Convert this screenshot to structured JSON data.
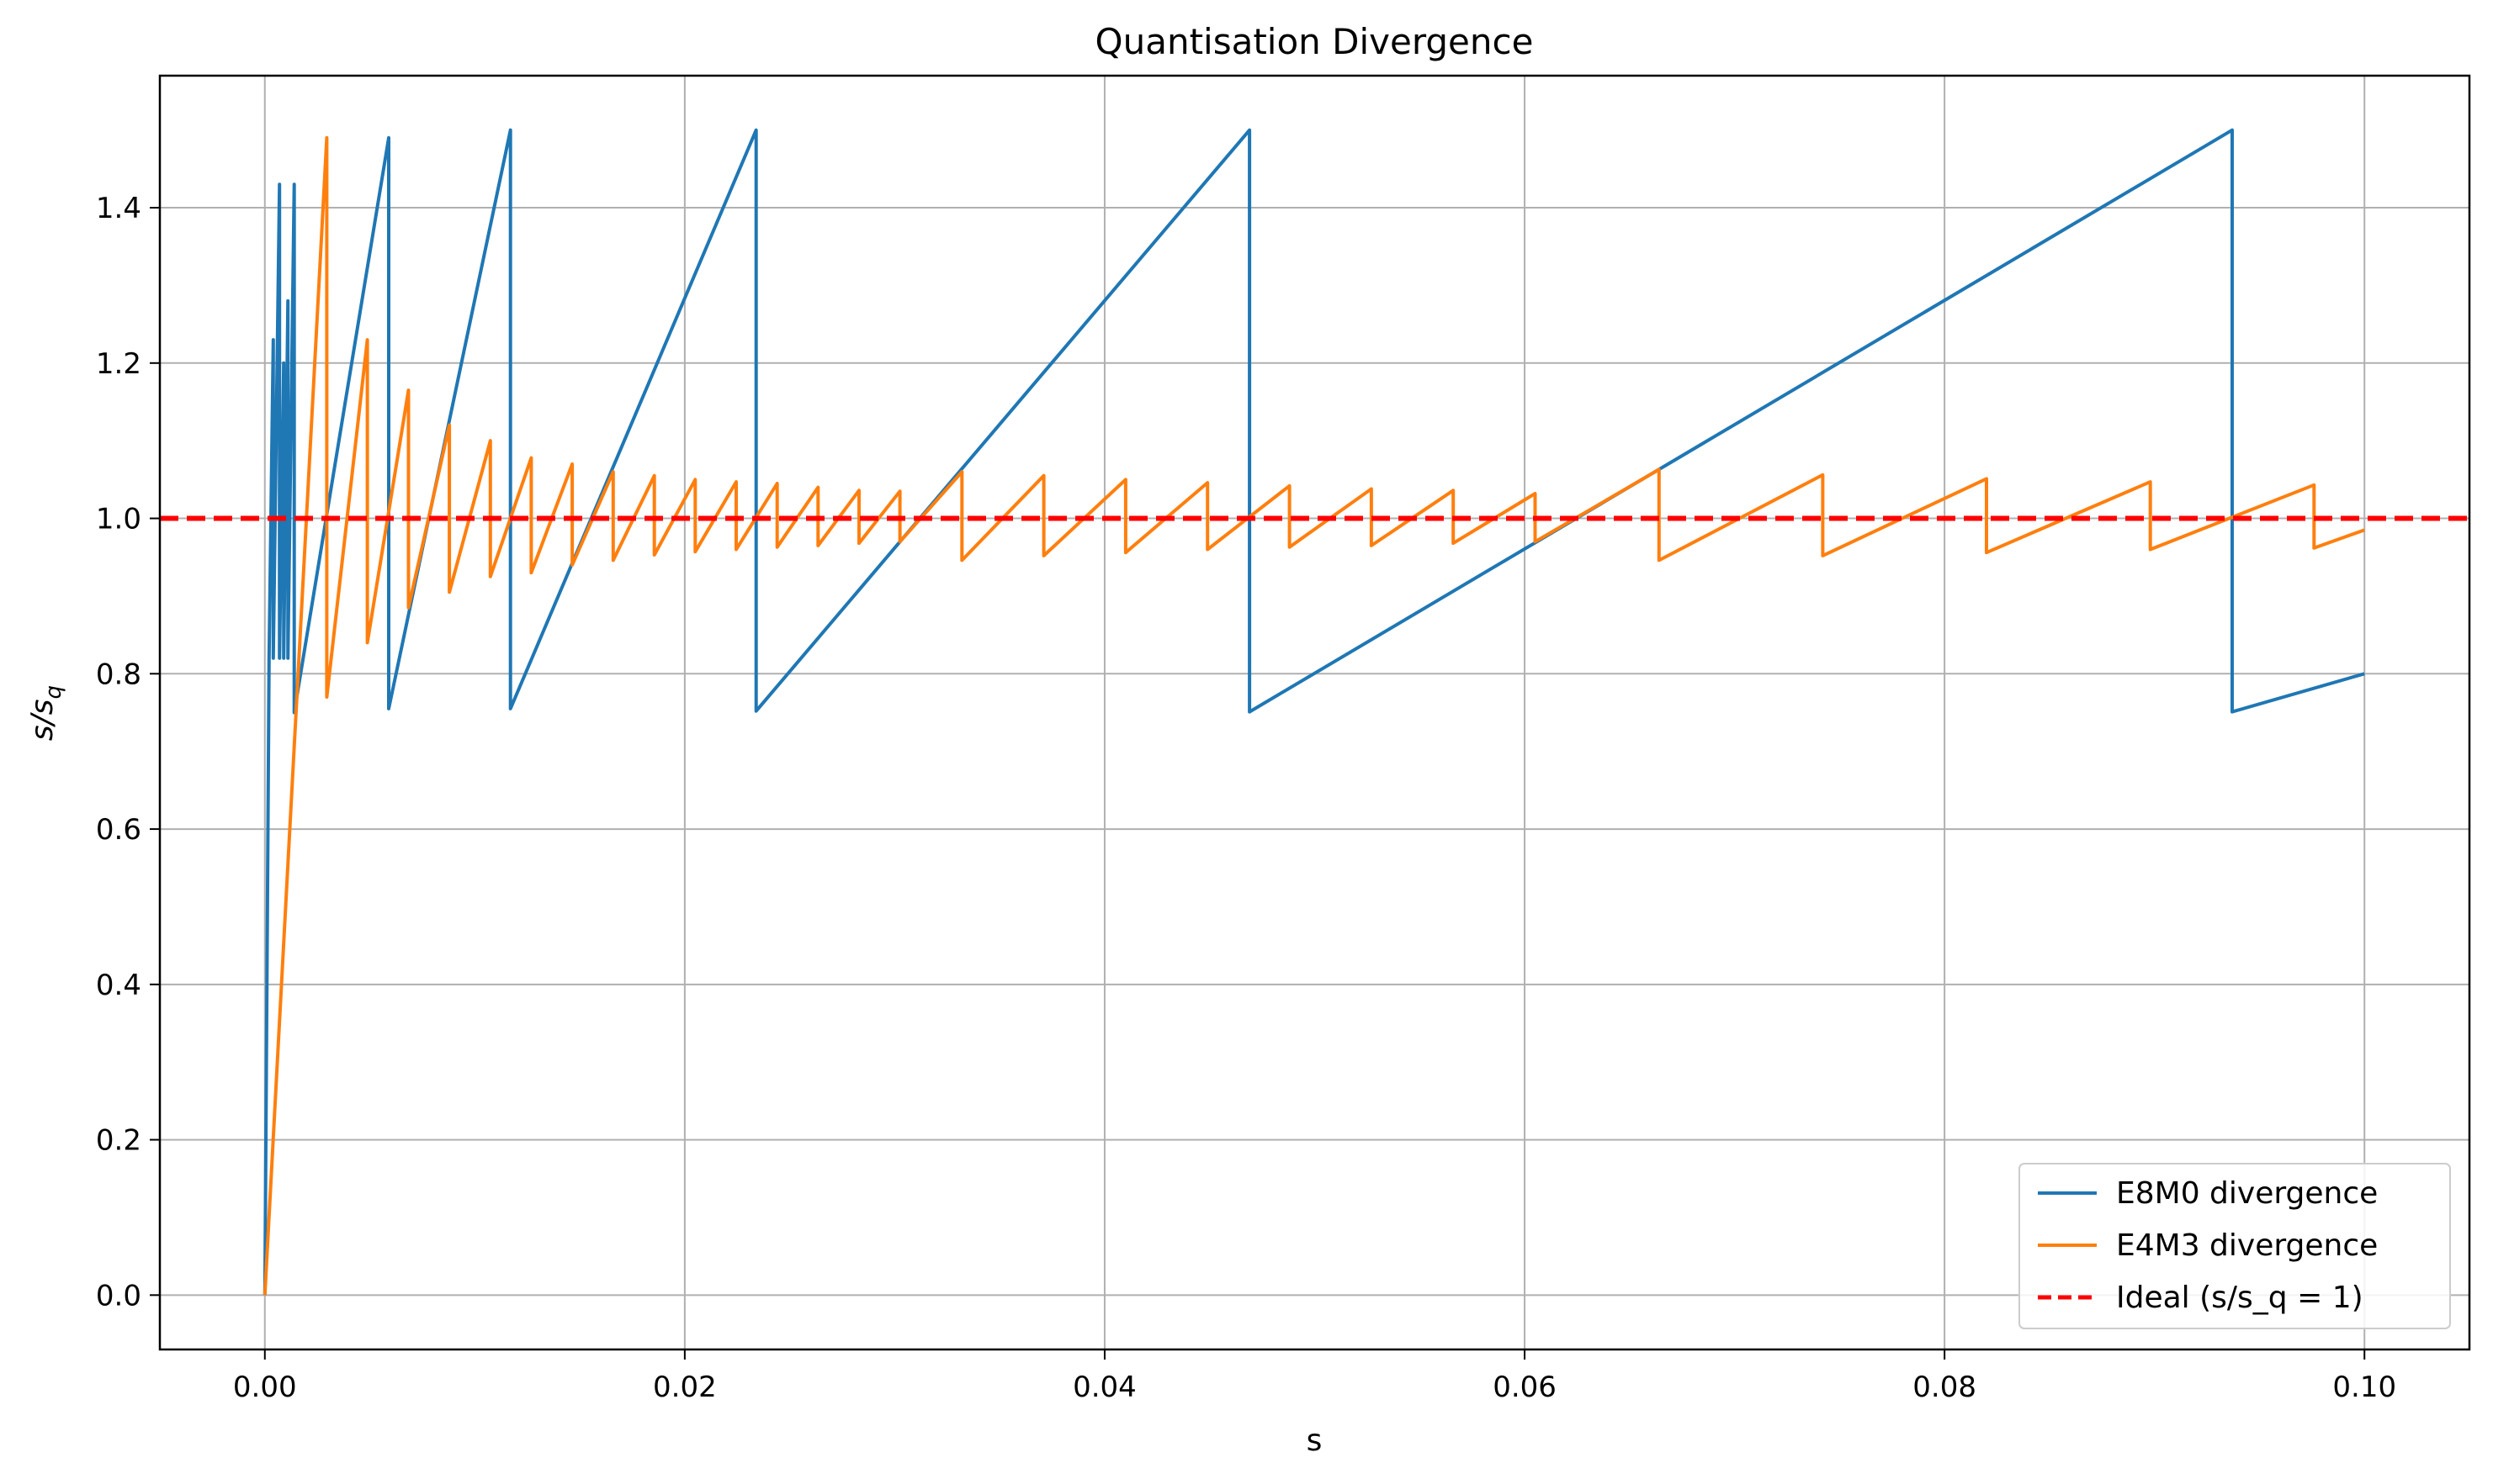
{
  "chart_data": {
    "type": "line",
    "title": "Quantisation Divergence",
    "xlabel": "s",
    "ylabel_main": "s/s",
    "ylabel_sub": "q",
    "xlim": [
      -0.005,
      0.105
    ],
    "ylim": [
      -0.07,
      1.57
    ],
    "grid": true,
    "legend_position": "lower-right",
    "x_ticks": [
      0.0,
      0.02,
      0.04,
      0.06,
      0.08,
      0.1
    ],
    "x_tick_labels": [
      "0.00",
      "0.02",
      "0.04",
      "0.06",
      "0.08",
      "0.10"
    ],
    "y_ticks": [
      0.0,
      0.2,
      0.4,
      0.6,
      0.8,
      1.0,
      1.2,
      1.4
    ],
    "y_tick_labels": [
      "0.0",
      "0.2",
      "0.4",
      "0.6",
      "0.8",
      "1.0",
      "1.2",
      "1.4"
    ],
    "series": [
      {
        "name": "E8M0 divergence",
        "color": "#1f77b4",
        "style": "solid",
        "x": [
          0.0,
          0.0002,
          0.0002,
          0.0004,
          0.0004,
          0.0007,
          0.0007,
          0.0009,
          0.0009,
          0.0011,
          0.0011,
          0.0014,
          0.0014,
          0.0059,
          0.0059,
          0.0117,
          0.0117,
          0.0234,
          0.0234,
          0.0469,
          0.0469,
          0.0937,
          0.0937,
          0.1
        ],
        "y": [
          0.0,
          0.82,
          0.82,
          1.23,
          0.82,
          1.43,
          0.82,
          1.2,
          0.82,
          1.28,
          0.82,
          1.43,
          0.75,
          1.49,
          0.755,
          1.5,
          0.755,
          1.5,
          0.752,
          1.5,
          0.751,
          1.5,
          0.751,
          0.8
        ]
      },
      {
        "name": "E4M3 divergence",
        "color": "#ff7f0e",
        "style": "solid",
        "x": [
          0.0,
          0.00295,
          0.00295,
          0.00488,
          0.00488,
          0.00684,
          0.00684,
          0.00879,
          0.00879,
          0.01074,
          0.01074,
          0.01269,
          0.01269,
          0.01464,
          0.01464,
          0.01659,
          0.01659,
          0.01855,
          0.01855,
          0.0205,
          0.0205,
          0.02245,
          0.02245,
          0.0244,
          0.0244,
          0.02635,
          0.02635,
          0.0283,
          0.0283,
          0.03025,
          0.03025,
          0.0332,
          0.0332,
          0.0371,
          0.0371,
          0.041,
          0.041,
          0.0449,
          0.0449,
          0.0488,
          0.0488,
          0.0527,
          0.0527,
          0.0566,
          0.0566,
          0.0605,
          0.0605,
          0.0664,
          0.0664,
          0.0742,
          0.0742,
          0.082,
          0.082,
          0.0898,
          0.0898,
          0.0976,
          0.0976,
          0.1
        ],
        "y": [
          0.0,
          1.49,
          0.77,
          1.23,
          0.84,
          1.165,
          0.885,
          1.12,
          0.905,
          1.1,
          0.925,
          1.078,
          0.93,
          1.07,
          0.94,
          1.06,
          0.946,
          1.055,
          0.953,
          1.05,
          0.957,
          1.047,
          0.96,
          1.045,
          0.963,
          1.04,
          0.965,
          1.036,
          0.968,
          1.035,
          0.97,
          1.06,
          0.946,
          1.055,
          0.952,
          1.05,
          0.956,
          1.046,
          0.96,
          1.042,
          0.963,
          1.038,
          0.965,
          1.036,
          0.968,
          1.032,
          0.97,
          1.063,
          0.946,
          1.056,
          0.952,
          1.051,
          0.956,
          1.047,
          0.96,
          1.043,
          0.962,
          0.985
        ]
      },
      {
        "name": "Ideal (s/s_q = 1)",
        "color": "#ff0000",
        "style": "dashed",
        "y_constant": 1.0
      }
    ]
  }
}
